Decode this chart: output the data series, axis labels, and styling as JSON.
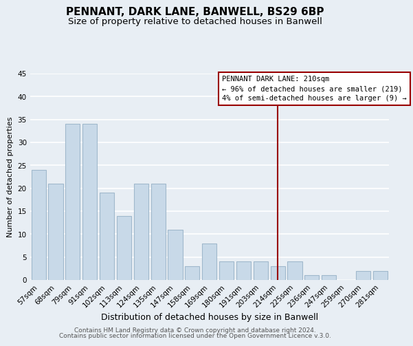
{
  "title": "PENNANT, DARK LANE, BANWELL, BS29 6BP",
  "subtitle": "Size of property relative to detached houses in Banwell",
  "xlabel": "Distribution of detached houses by size in Banwell",
  "ylabel": "Number of detached properties",
  "bar_color": "#c8d9e8",
  "bar_edge_color": "#a0b8cc",
  "categories": [
    "57sqm",
    "68sqm",
    "79sqm",
    "91sqm",
    "102sqm",
    "113sqm",
    "124sqm",
    "135sqm",
    "147sqm",
    "158sqm",
    "169sqm",
    "180sqm",
    "191sqm",
    "203sqm",
    "214sqm",
    "225sqm",
    "236sqm",
    "247sqm",
    "259sqm",
    "270sqm",
    "281sqm"
  ],
  "values": [
    24,
    21,
    34,
    34,
    19,
    14,
    21,
    21,
    11,
    3,
    8,
    4,
    4,
    4,
    3,
    4,
    1,
    1,
    0,
    2,
    2
  ],
  "ylim": [
    0,
    45
  ],
  "yticks": [
    0,
    5,
    10,
    15,
    20,
    25,
    30,
    35,
    40,
    45
  ],
  "annotation_title": "PENNANT DARK LANE: 210sqm",
  "annotation_line1": "← 96% of detached houses are smaller (219)",
  "annotation_line2": "4% of semi-detached houses are larger (9) →",
  "vline_category": "214sqm",
  "vline_color": "#990000",
  "footer1": "Contains HM Land Registry data © Crown copyright and database right 2024.",
  "footer2": "Contains public sector information licensed under the Open Government Licence v.3.0.",
  "bg_color": "#e8eef4",
  "grid_color": "white",
  "title_fontsize": 11,
  "subtitle_fontsize": 9.5,
  "xlabel_fontsize": 9,
  "ylabel_fontsize": 8,
  "tick_fontsize": 7.5,
  "annot_fontsize": 7.5,
  "footer_fontsize": 6.5
}
